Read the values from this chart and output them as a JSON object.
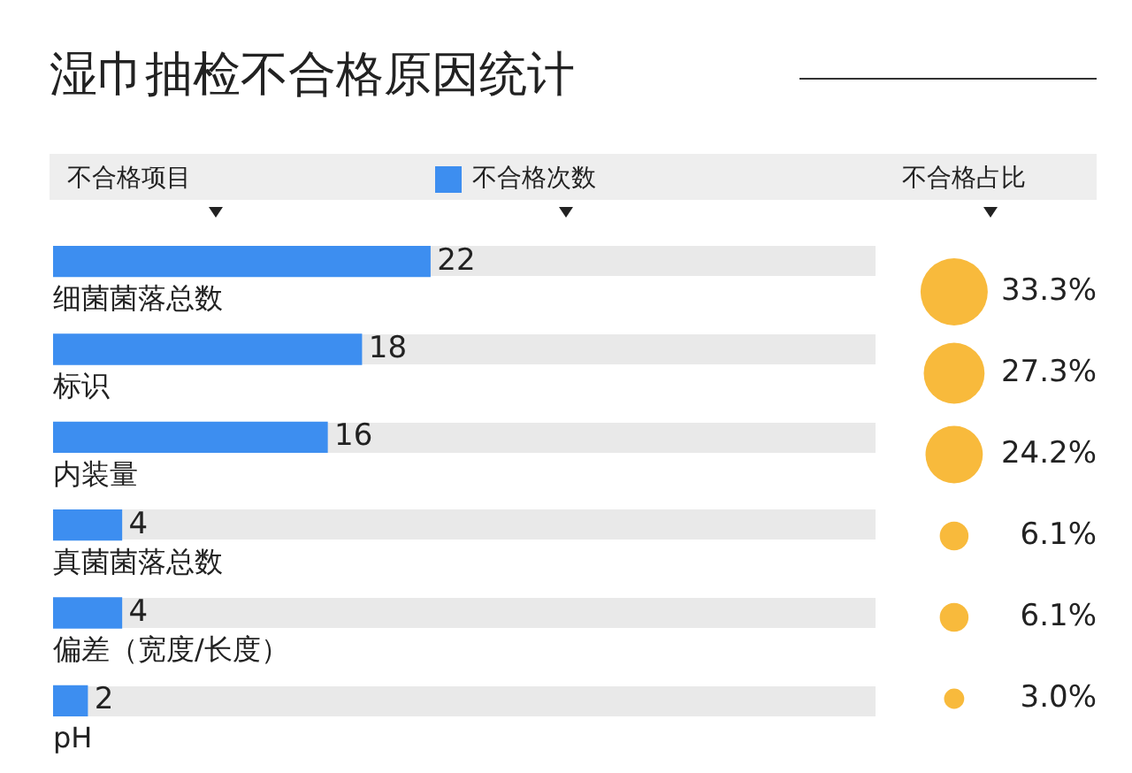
{
  "chart_data": [
    {
      "type": "bar",
      "title": "湿巾抽检不合格原因统计",
      "ylabel": "不合格项目",
      "orientation": "horizontal",
      "categories": [
        "细菌菌落总数",
        "标识",
        "内装量",
        "真菌菌落总数",
        "偏差（宽度/长度）",
        "pH"
      ],
      "series": [
        {
          "name": "不合格次数",
          "color": "#3d8ef0",
          "values": [
            22,
            18,
            16,
            4,
            4,
            2
          ]
        }
      ],
      "xlim": [
        0,
        48
      ],
      "data_labels": true,
      "legend": "top"
    },
    {
      "type": "other",
      "title": "不合格占比",
      "values": [
        33.3,
        27.3,
        24.2,
        6.1,
        6.1,
        3.0
      ],
      "value_labels": [
        "33.3%",
        "27.3%",
        "24.2%",
        "6.1%",
        "6.1%",
        "3.0%"
      ],
      "color": "#f8ba3c"
    }
  ]
}
